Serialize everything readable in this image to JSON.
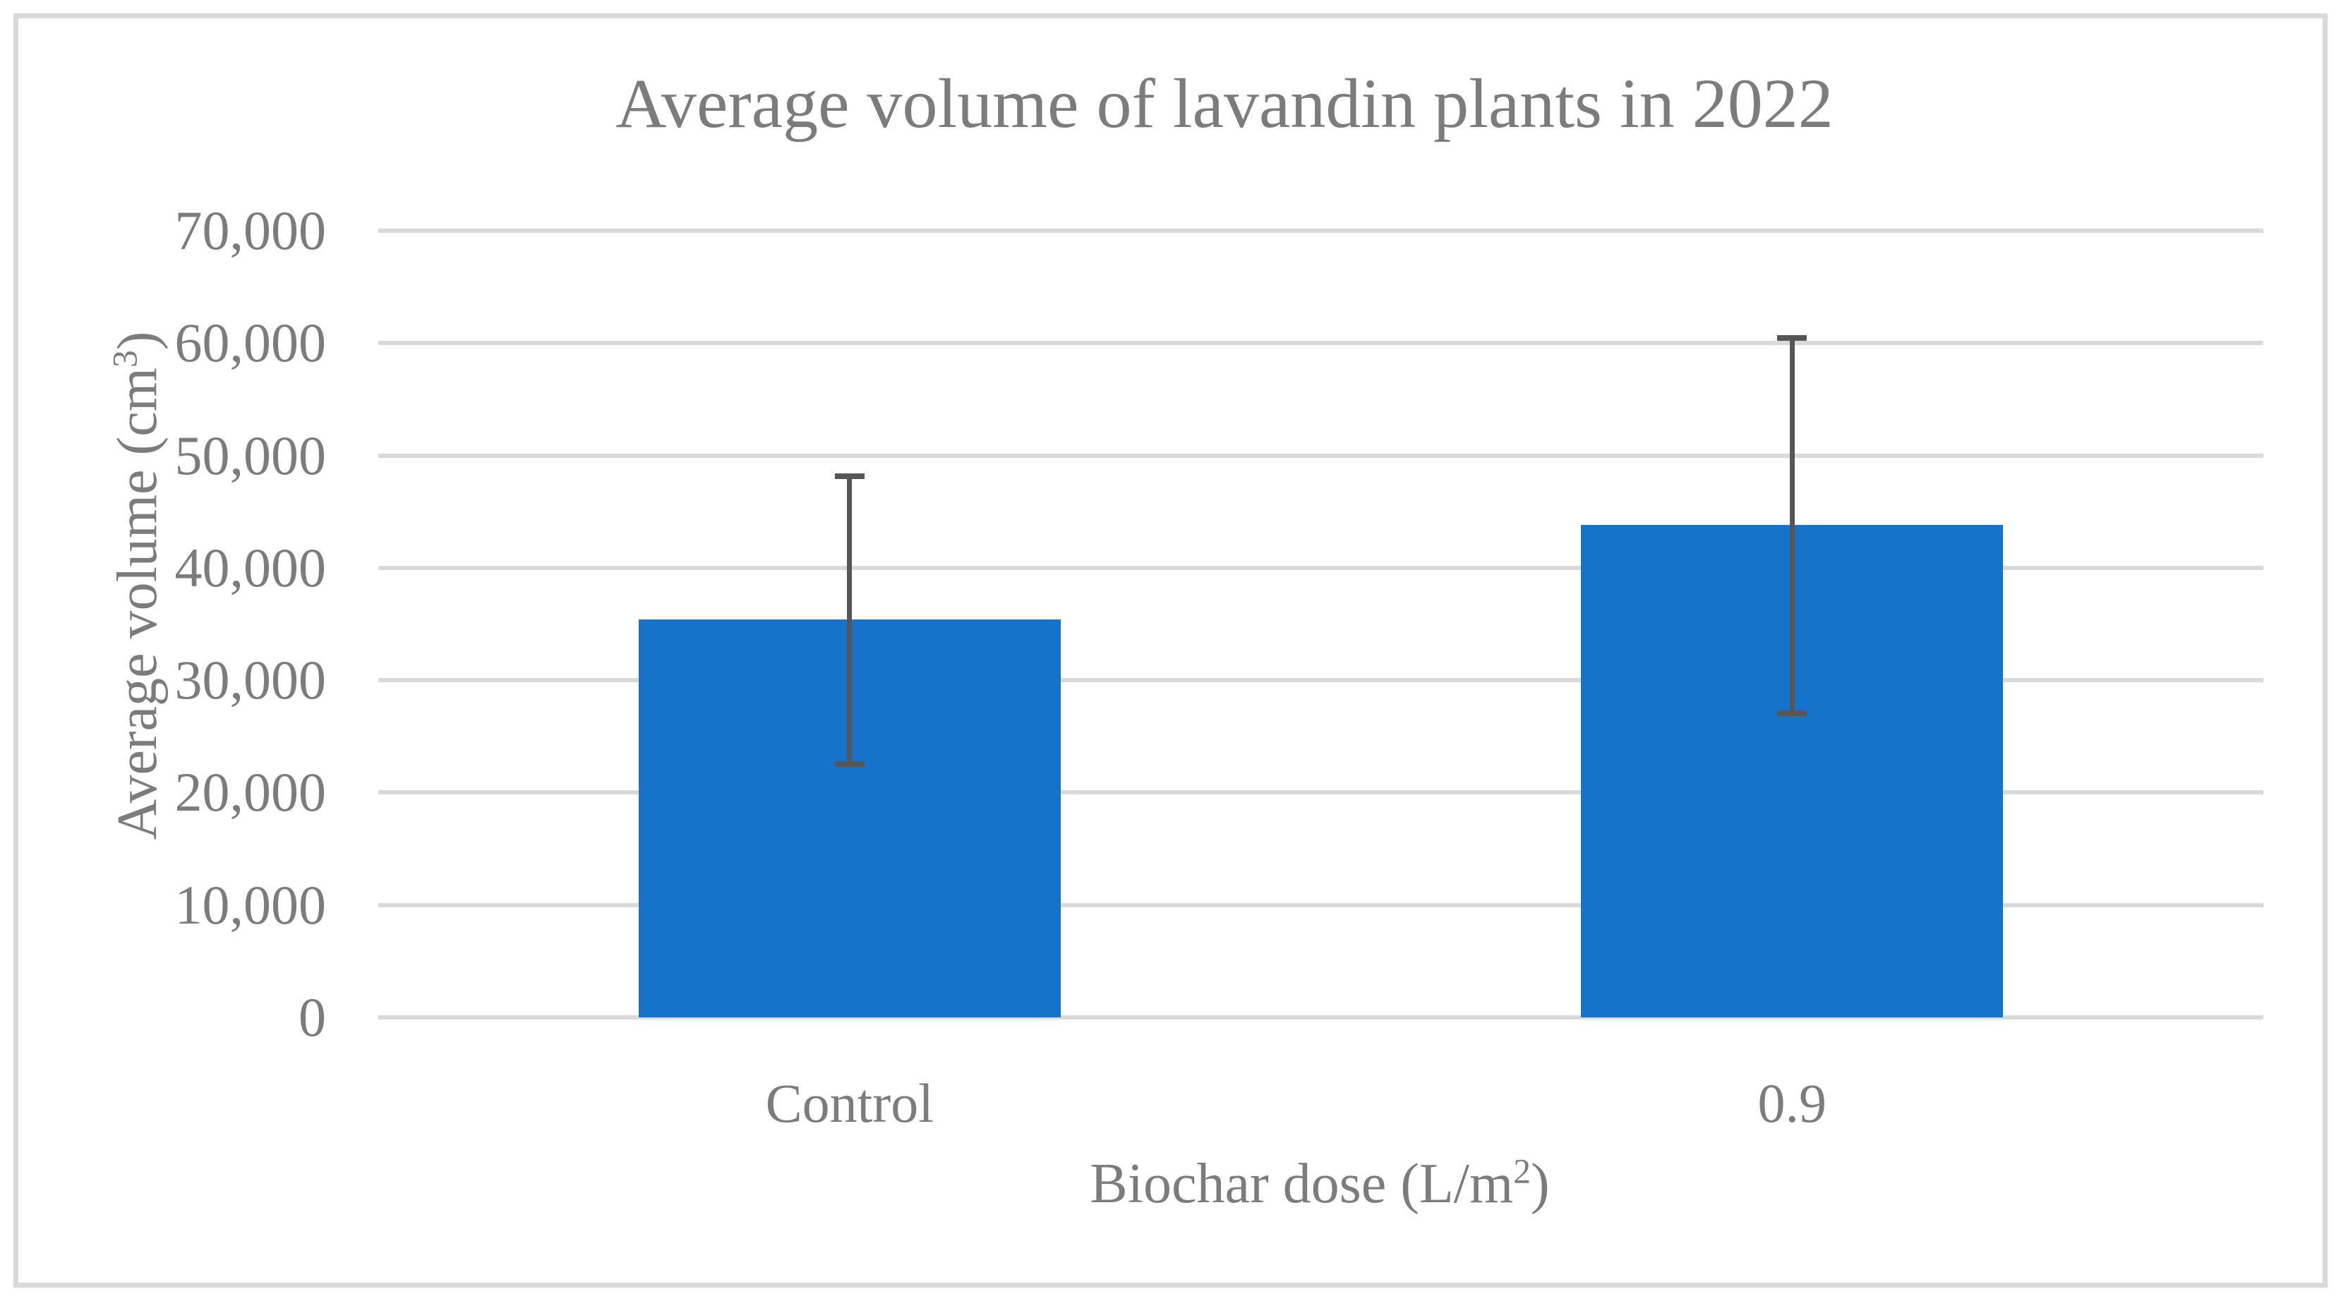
{
  "figure": {
    "title": "Average volume of lavandin plants in 2022",
    "y_axis": {
      "title_prefix": "Average volume (cm",
      "title_sup": "3",
      "title_suffix": ")",
      "tick_labels": [
        "70,000",
        "60,000",
        "50,000",
        "40,000",
        "30,000",
        "20,000",
        "10,000",
        "0"
      ]
    },
    "x_axis": {
      "title_prefix": "Biochar dose (L/m",
      "title_sup": "2",
      "title_suffix": ")",
      "categories": [
        "Control",
        "0.9"
      ]
    },
    "colors": {
      "bar": "#1773C9",
      "error_bar": "#565656",
      "gridline": "#DADADA",
      "text": "#7C7C7C",
      "border": "#D9D9D9"
    }
  },
  "chart_data": {
    "type": "bar",
    "title": "Average volume of lavandin plants in 2022",
    "xlabel": "Biochar dose (L/m2)",
    "ylabel": "Average volume (cm3)",
    "categories": [
      "Control",
      "0.9"
    ],
    "values": [
      35400,
      43800
    ],
    "error_bars": [
      {
        "category": "Control",
        "plus_minus": 12800,
        "upper": 48200,
        "lower": 22600
      },
      {
        "category": "0.9",
        "plus_minus": 16700,
        "upper": 60500,
        "lower": 27100
      }
    ],
    "ylim": [
      0,
      70000
    ],
    "ytick_step": 10000,
    "grid": true,
    "legend": false
  }
}
